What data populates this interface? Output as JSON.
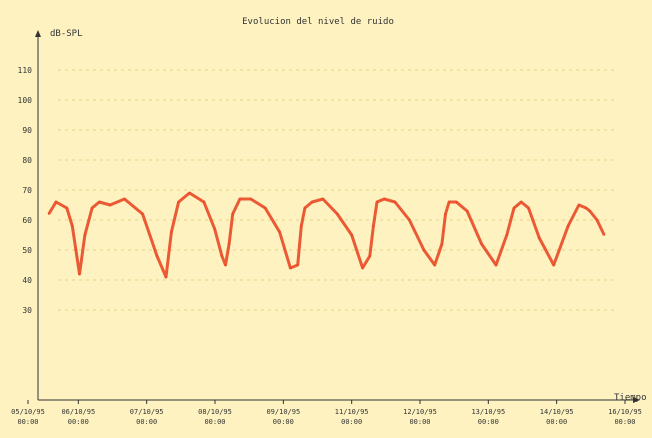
{
  "chart_data": {
    "type": "line",
    "title": "Evolucion del nivel de ruido",
    "ylabel": "dB-SPL",
    "xlabel": "Tiempo",
    "ylim": [
      0,
      120
    ],
    "yticks": [
      30,
      40,
      50,
      60,
      70,
      80,
      90,
      100,
      110
    ],
    "x_ticks": [
      {
        "date": "05/10/95",
        "time": "00:00"
      },
      {
        "date": "06/10/95",
        "time": "00:00"
      },
      {
        "date": "07/10/95",
        "time": "00:00"
      },
      {
        "date": "08/10/95",
        "time": "00:00"
      },
      {
        "date": "09/10/95",
        "time": "00:00"
      },
      {
        "date": "11/10/95",
        "time": "00:00"
      },
      {
        "date": "12/10/95",
        "time": "00:00"
      },
      {
        "date": "13/10/95",
        "time": "00:00"
      },
      {
        "date": "14/10/95",
        "time": "00:00"
      },
      {
        "date": "16/10/95",
        "time": "00:00"
      }
    ],
    "grid": true,
    "series": [
      {
        "color": "#e8401c",
        "x_days": [
          0.3,
          0.5,
          0.8,
          0.95,
          1.05,
          1.15,
          1.3,
          1.5,
          1.7,
          2.0,
          2.4,
          2.9,
          3.3,
          3.55,
          3.7,
          3.9,
          4.2,
          4.6,
          4.9,
          5.1,
          5.2,
          5.3,
          5.4,
          5.6,
          5.9,
          6.3,
          6.7,
          7.0,
          7.2,
          7.3,
          7.4,
          7.6,
          7.9,
          8.3,
          8.7,
          9.0,
          9.2,
          9.3,
          9.4,
          9.6,
          9.9,
          10.3,
          10.7,
          11.0,
          11.2,
          11.3,
          11.4,
          11.6,
          11.9,
          12.3,
          12.7,
          13.0,
          13.2,
          13.3,
          13.4,
          13.6,
          13.9,
          14.3,
          14.7,
          15.0,
          15.2,
          15.3,
          15.5,
          15.7
        ],
        "values": [
          62,
          66,
          64,
          58,
          50,
          42,
          55,
          64,
          66,
          65,
          67,
          62,
          48,
          41,
          56,
          66,
          69,
          66,
          57,
          48,
          45,
          52,
          62,
          67,
          67,
          64,
          56,
          44,
          45,
          58,
          64,
          66,
          67,
          62,
          55,
          44,
          48,
          58,
          66,
          67,
          66,
          60,
          50,
          45,
          52,
          62,
          66,
          66,
          63,
          52,
          45,
          55,
          64,
          65,
          66,
          64,
          54,
          45,
          58,
          65,
          64,
          63,
          60,
          55
        ]
      }
    ]
  }
}
